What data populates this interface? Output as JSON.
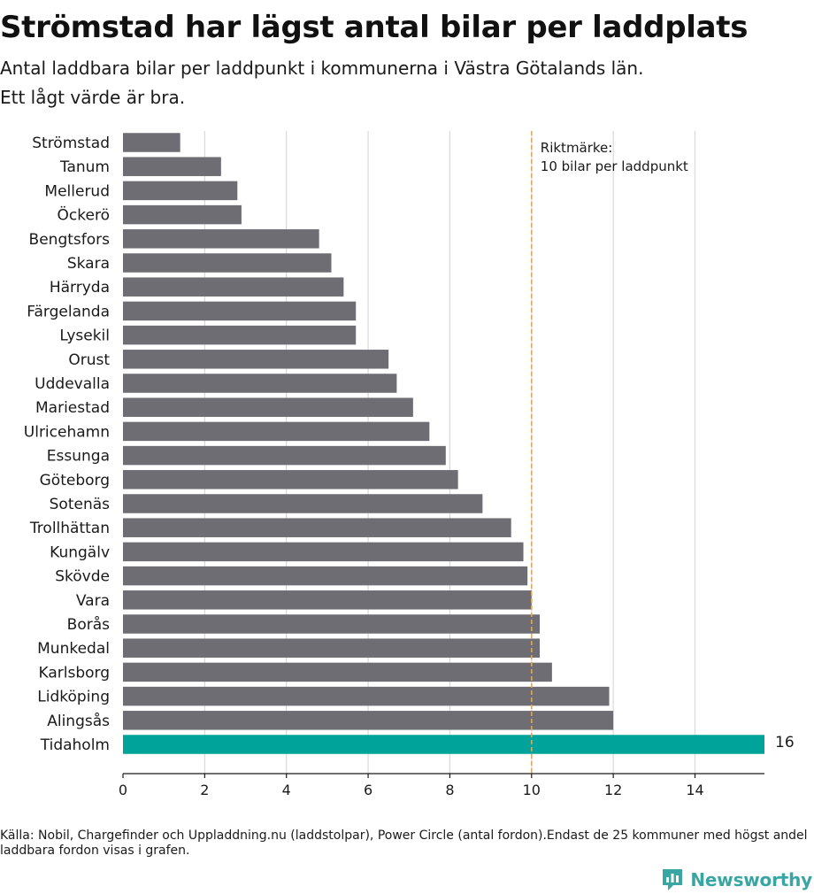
{
  "header": {
    "title": "Strömstad har lägst antal bilar per laddplats",
    "subtitle_line1": "Antal laddbara bilar per laddpunkt i kommunerna i Västra Götalands län.",
    "subtitle_line2": "Ett lågt värde är bra."
  },
  "footer": {
    "source": "Källa: Nobil, Chargefinder och Uppladdning.nu (laddstolpar), Power Circle (antal fordon).Endast de 25 kommuner med högst andel laddbara fordon visas i grafen.",
    "brand": "Newsworthy"
  },
  "colors": {
    "bar": "#6e6d74",
    "highlight": "#00a39a",
    "reference_line": "#d9a864",
    "grid": "#d9d9d9",
    "brand": "#3aa6a3"
  },
  "chart_data": {
    "type": "bar",
    "orientation": "horizontal",
    "title": "Strömstad har lägst antal bilar per laddplats",
    "subtitle": "Antal laddbara bilar per laddpunkt i kommunerna i Västra Götalands län. Ett lågt värde är bra.",
    "xlabel": "",
    "ylabel": "",
    "xlim": [
      0,
      15.7
    ],
    "x_ticks": [
      0,
      2,
      4,
      6,
      8,
      10,
      12,
      14
    ],
    "grid": "vertical",
    "categories": [
      "Strömstad",
      "Tanum",
      "Mellerud",
      "Öckerö",
      "Bengtsfors",
      "Skara",
      "Härryda",
      "Färgelanda",
      "Lysekil",
      "Orust",
      "Uddevalla",
      "Mariestad",
      "Ulricehamn",
      "Essunga",
      "Göteborg",
      "Sotenäs",
      "Trollhättan",
      "Kungälv",
      "Skövde",
      "Vara",
      "Borås",
      "Munkedal",
      "Karlsborg",
      "Lidköping",
      "Alingsås",
      "Tidaholm"
    ],
    "values": [
      1.4,
      2.4,
      2.8,
      2.9,
      4.8,
      5.1,
      5.4,
      5.7,
      5.7,
      6.5,
      6.7,
      7.1,
      7.5,
      7.9,
      8.2,
      8.8,
      9.5,
      9.8,
      9.9,
      10.0,
      10.2,
      10.2,
      10.5,
      11.9,
      12.0,
      16
    ],
    "highlighted": "Tidaholm",
    "truncated_bar": {
      "category": "Tidaholm",
      "label": "16"
    },
    "reference_line": {
      "x": 10,
      "label_line1": "Riktmärke:",
      "label_line2": "10 bilar per laddpunkt"
    }
  }
}
